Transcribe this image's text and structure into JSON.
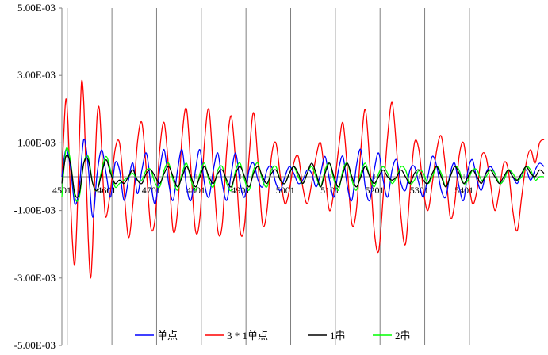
{
  "chart_data": {
    "type": "line",
    "title": "",
    "xlabel": "",
    "ylabel": "",
    "ylim": [
      -0.005,
      0.005
    ],
    "xlim": [
      4501,
      5580
    ],
    "y_ticks": [
      0.005,
      0.003,
      0.001,
      -0.001,
      -0.003,
      -0.005
    ],
    "y_tick_labels": [
      "5.00E-03",
      "3.00E-03",
      "1.00E-03",
      "-1.00E-03",
      "-3.00E-03",
      "-5.00E-03"
    ],
    "x_ticks": [
      4501,
      4601,
      4701,
      4801,
      4901,
      5001,
      5101,
      5201,
      5301,
      5401
    ],
    "x_tick_labels": [
      "4501",
      "4601",
      "4701",
      "4801",
      "4901",
      "5001",
      "5101",
      "5201",
      "5301",
      "5401"
    ],
    "grid": "vertical",
    "legend_position": "bottom",
    "colors": {
      "单点": "#0000ff",
      "3 * 1单点": "#ff0000",
      "1串": "#000000",
      "2串": "#00ff00"
    },
    "series": [
      {
        "name": "单点",
        "color": "#0000ff",
        "x": [
          4501,
          4510,
          4520,
          4530,
          4540,
          4550,
          4560,
          4570,
          4580,
          4590,
          4600,
          4610,
          4620,
          4630,
          4640,
          4650,
          4660,
          4670,
          4680,
          4690,
          4700,
          4710,
          4720,
          4730,
          4740,
          4750,
          4760,
          4770,
          4780,
          4790,
          4800,
          4810,
          4820,
          4830,
          4840,
          4850,
          4860,
          4870,
          4880,
          4890,
          4900,
          4910,
          4920,
          4930,
          4940,
          4950,
          4960,
          4970,
          4980,
          4990,
          5000,
          5010,
          5020,
          5030,
          5040,
          5050,
          5060,
          5070,
          5080,
          5090,
          5100,
          5110,
          5120,
          5130,
          5140,
          5150,
          5160,
          5170,
          5180,
          5190,
          5200,
          5210,
          5220,
          5230,
          5240,
          5250,
          5260,
          5270,
          5280,
          5290,
          5300,
          5310,
          5320,
          5330,
          5340,
          5350,
          5360,
          5370,
          5380,
          5390,
          5400,
          5410,
          5420,
          5430,
          5440,
          5450,
          5460,
          5470,
          5480,
          5490,
          5500,
          5510,
          5520,
          5530,
          5540,
          5550,
          5560,
          5570,
          5580
        ],
        "y": [
          0.0,
          0.0008,
          0.0003,
          -0.0008,
          -0.0003,
          0.0011,
          0.0003,
          -0.0012,
          0.0001,
          0.0008,
          0.0001,
          -0.0006,
          0.0004,
          0.0002,
          -0.0007,
          -0.0001,
          0.0004,
          -0.0005,
          0.0002,
          0.0007,
          -0.0002,
          -0.0008,
          0.0002,
          0.0008,
          -0.0002,
          -0.0007,
          0.0002,
          0.0008,
          -0.0003,
          -0.0007,
          0.0002,
          0.0008,
          -0.0002,
          -0.0006,
          0.0002,
          0.0007,
          -0.0002,
          -0.0007,
          0.0001,
          0.0007,
          -0.0002,
          -0.0006,
          0.0002,
          0.0004,
          -0.0001,
          -0.0003,
          0.0002,
          0.0003,
          -0.0002,
          -0.0004,
          0.0,
          0.0003,
          0.0001,
          -0.0002,
          -0.0001,
          0.0002,
          0.0001,
          -0.0003,
          0.0001,
          0.0006,
          -0.0001,
          -0.0006,
          0.0002,
          0.0006,
          -0.0003,
          -0.0007,
          0.0003,
          0.0008,
          -0.0003,
          -0.0007,
          0.0002,
          0.0007,
          -0.0001,
          -0.0006,
          0.0002,
          0.0005,
          -0.0002,
          -0.0004,
          0.0002,
          0.0003,
          -0.0002,
          -0.0006,
          0.0,
          0.0006,
          0.0003,
          -0.0004,
          -0.0006,
          0.0001,
          0.0004,
          -0.0003,
          -0.0007,
          0.0002,
          0.0005,
          -0.0001,
          -0.0004,
          0.0001,
          0.0003,
          0.0001,
          -0.0002,
          -0.0001,
          0.0002,
          0.0,
          -0.0002,
          0.0001,
          0.0002,
          -0.0001,
          0.0002,
          0.0004,
          0.0003
        ]
      },
      {
        "name": "3 * 1单点",
        "color": "#ff0000",
        "x": [
          4501,
          4505,
          4510,
          4515,
          4520,
          4525,
          4530,
          4535,
          4540,
          4545,
          4550,
          4555,
          4560,
          4565,
          4570,
          4575,
          4580,
          4585,
          4590,
          4595,
          4600,
          4610,
          4620,
          4630,
          4640,
          4650,
          4660,
          4670,
          4680,
          4690,
          4700,
          4710,
          4720,
          4730,
          4740,
          4750,
          4760,
          4770,
          4780,
          4790,
          4800,
          4810,
          4820,
          4830,
          4840,
          4850,
          4860,
          4870,
          4880,
          4890,
          4900,
          4910,
          4920,
          4930,
          4940,
          4950,
          4960,
          4970,
          4980,
          4990,
          5000,
          5010,
          5020,
          5030,
          5040,
          5050,
          5060,
          5070,
          5080,
          5090,
          5100,
          5110,
          5120,
          5130,
          5140,
          5150,
          5160,
          5170,
          5180,
          5190,
          5200,
          5210,
          5220,
          5230,
          5240,
          5250,
          5260,
          5270,
          5280,
          5290,
          5300,
          5310,
          5320,
          5330,
          5340,
          5350,
          5360,
          5370,
          5380,
          5390,
          5400,
          5410,
          5420,
          5430,
          5440,
          5450,
          5460,
          5470,
          5480,
          5490,
          5500,
          5510,
          5520,
          5530,
          5540,
          5550,
          5560,
          5570,
          5580
        ],
        "y": [
          0.0,
          0.0012,
          0.0023,
          0.0015,
          -0.0005,
          -0.002,
          -0.0026,
          -0.0012,
          0.001,
          0.0028,
          0.0022,
          0.0002,
          -0.0018,
          -0.003,
          -0.002,
          0.0002,
          0.0018,
          0.002,
          0.0008,
          -0.0006,
          -0.0012,
          -0.0004,
          0.0008,
          0.001,
          -0.0004,
          -0.0018,
          -0.0008,
          0.001,
          0.0016,
          0.0002,
          -0.0015,
          -0.0012,
          0.0008,
          0.0016,
          0.0002,
          -0.0016,
          -0.001,
          0.0012,
          0.002,
          0.0002,
          -0.0016,
          -0.0012,
          0.001,
          0.002,
          0.0002,
          -0.0016,
          -0.0014,
          0.0008,
          0.0018,
          0.0004,
          -0.0016,
          -0.0014,
          0.0006,
          0.0019,
          0.0004,
          -0.0014,
          -0.001,
          0.0006,
          0.001,
          0.0,
          -0.0008,
          -0.0004,
          0.0004,
          0.0006,
          -0.0003,
          -0.0008,
          -0.0002,
          0.0006,
          0.001,
          0.0,
          -0.001,
          -0.0004,
          0.0008,
          0.0016,
          0.0002,
          -0.0014,
          -0.001,
          0.0008,
          0.002,
          0.0004,
          -0.0016,
          -0.0022,
          -0.0006,
          0.0012,
          0.0022,
          0.0008,
          -0.0012,
          -0.002,
          -0.0004,
          0.001,
          0.0008,
          -0.0004,
          -0.001,
          -0.0002,
          0.0008,
          0.0012,
          0.0002,
          -0.0012,
          -0.0008,
          0.0006,
          0.001,
          0.0,
          -0.0008,
          -0.0004,
          0.0006,
          0.0006,
          -0.0002,
          -0.001,
          -0.0004,
          0.0004,
          0.0002,
          -0.001,
          -0.0016,
          -0.0006,
          0.0004,
          0.0008,
          0.0004,
          0.001,
          0.0011
        ]
      },
      {
        "name": "1串",
        "color": "#000000",
        "x": [
          4501,
          4510,
          4520,
          4530,
          4540,
          4550,
          4560,
          4570,
          4580,
          4590,
          4600,
          4610,
          4620,
          4630,
          4640,
          4650,
          4660,
          4670,
          4680,
          4690,
          4700,
          4710,
          4720,
          4730,
          4740,
          4750,
          4760,
          4770,
          4780,
          4790,
          4800,
          4810,
          4820,
          4830,
          4840,
          4850,
          4860,
          4870,
          4880,
          4890,
          4900,
          4910,
          4920,
          4930,
          4940,
          4950,
          4960,
          4970,
          4980,
          4990,
          5000,
          5010,
          5020,
          5030,
          5040,
          5050,
          5060,
          5070,
          5080,
          5090,
          5100,
          5110,
          5120,
          5130,
          5140,
          5150,
          5160,
          5170,
          5180,
          5190,
          5200,
          5210,
          5220,
          5230,
          5240,
          5250,
          5260,
          5270,
          5280,
          5290,
          5300,
          5310,
          5320,
          5330,
          5340,
          5350,
          5360,
          5370,
          5380,
          5390,
          5400,
          5410,
          5420,
          5430,
          5440,
          5450,
          5460,
          5470,
          5480,
          5490,
          5500,
          5510,
          5520,
          5530,
          5540,
          5550,
          5560,
          5570,
          5580
        ],
        "y": [
          -0.0002,
          0.0006,
          0.0004,
          -0.0005,
          -0.0005,
          0.0004,
          0.0005,
          -0.0002,
          -0.0004,
          0.0001,
          0.0005,
          0.0001,
          -0.0002,
          -0.0001,
          -0.0002,
          0.0,
          0.0002,
          -0.0001,
          -0.0002,
          0.0001,
          0.0002,
          0.0,
          -0.0002,
          0.0001,
          0.0003,
          0.0,
          -0.0003,
          0.0,
          0.0003,
          0.0,
          -0.0003,
          0.0,
          0.0003,
          0.0,
          -0.0002,
          0.0001,
          0.0002,
          -0.0001,
          -0.0003,
          0.0001,
          0.0003,
          0.0,
          -0.0003,
          0.0001,
          0.0003,
          0.0,
          -0.0002,
          0.0001,
          0.0002,
          -0.0001,
          -0.0002,
          0.0001,
          0.0003,
          0.0001,
          -0.0002,
          0.0001,
          0.0004,
          0.0001,
          -0.0003,
          0.0001,
          0.0004,
          0.0,
          -0.0003,
          0.0001,
          0.0004,
          0.0,
          -0.0003,
          0.0,
          0.0003,
          0.0,
          -0.0002,
          0.0,
          0.0002,
          0.0,
          -0.0001,
          0.0,
          0.0002,
          0.0,
          -0.0002,
          0.0001,
          0.0002,
          -0.0001,
          -0.0002,
          0.0001,
          0.0003,
          0.0,
          -0.0003,
          0.0,
          0.0003,
          0.0001,
          -0.0002,
          0.0,
          0.0002,
          0.0,
          -0.0002,
          0.0001,
          0.0002,
          0.0,
          -0.0002,
          0.0,
          0.0002,
          0.0,
          -0.0001,
          0.0001,
          0.0003,
          0.0001,
          0.0,
          0.0002,
          0.0001
        ]
      },
      {
        "name": "2串",
        "color": "#00ff00",
        "x": [
          4501,
          4510,
          4520,
          4530,
          4540,
          4550,
          4560,
          4570,
          4580,
          4590,
          4600,
          4610,
          4620,
          4630,
          4640,
          4650,
          4660,
          4670,
          4680,
          4690,
          4700,
          4710,
          4720,
          4730,
          4740,
          4750,
          4760,
          4770,
          4780,
          4790,
          4800,
          4810,
          4820,
          4830,
          4840,
          4850,
          4860,
          4870,
          4880,
          4890,
          4900,
          4910,
          4920,
          4930,
          4940,
          4950,
          4960,
          4970,
          4980,
          4990,
          5000,
          5010,
          5020,
          5030,
          5040,
          5050,
          5060,
          5070,
          5080,
          5090,
          5100,
          5110,
          5120,
          5130,
          5140,
          5150,
          5160,
          5170,
          5180,
          5190,
          5200,
          5210,
          5220,
          5230,
          5240,
          5250,
          5260,
          5270,
          5280,
          5290,
          5300,
          5310,
          5320,
          5330,
          5340,
          5350,
          5360,
          5370,
          5380,
          5390,
          5400,
          5410,
          5420,
          5430,
          5440,
          5450,
          5460,
          5470,
          5480,
          5490,
          5500,
          5510,
          5520,
          5530,
          5540,
          5550,
          5560,
          5570,
          5580
        ],
        "y": [
          -0.0006,
          0.0008,
          0.0005,
          -0.0006,
          -0.0006,
          0.0004,
          0.0006,
          -0.0002,
          -0.0004,
          0.0002,
          0.0006,
          0.0002,
          -0.0003,
          -0.0002,
          -0.0001,
          0.0,
          0.0001,
          -0.0001,
          -0.0001,
          0.0002,
          0.0002,
          -0.0002,
          -0.0003,
          0.0002,
          0.0004,
          -0.0001,
          -0.0004,
          0.0001,
          0.0004,
          -0.0001,
          -0.0004,
          0.0001,
          0.0004,
          -0.0001,
          -0.0003,
          0.0002,
          0.0003,
          -0.0002,
          -0.0004,
          0.0002,
          0.0004,
          -0.0001,
          -0.0004,
          0.0002,
          0.0004,
          -0.0001,
          -0.0003,
          0.0002,
          0.0003,
          -0.0001,
          -0.0002,
          0.0001,
          0.0003,
          0.0,
          -0.0002,
          0.0001,
          0.0003,
          0.0,
          -0.0003,
          0.0002,
          0.0004,
          -0.0001,
          -0.0004,
          0.0002,
          0.0004,
          -0.0001,
          -0.0004,
          0.0001,
          0.0004,
          0.0,
          -0.0003,
          0.0001,
          0.0003,
          0.0001,
          -0.0002,
          0.0,
          0.0003,
          0.0002,
          -0.0002,
          -0.0001,
          0.0002,
          0.0001,
          -0.0002,
          0.0,
          0.0003,
          0.0001,
          -0.0003,
          0.0,
          0.0003,
          0.0002,
          -0.0002,
          -0.0001,
          0.0002,
          0.0002,
          -0.0001,
          0.0,
          0.0002,
          0.0001,
          -0.0002,
          -0.0001,
          0.0002,
          0.0001,
          -0.0001,
          0.0,
          0.0003,
          0.0002,
          -0.0001,
          0.0,
          0.0
        ]
      }
    ]
  }
}
